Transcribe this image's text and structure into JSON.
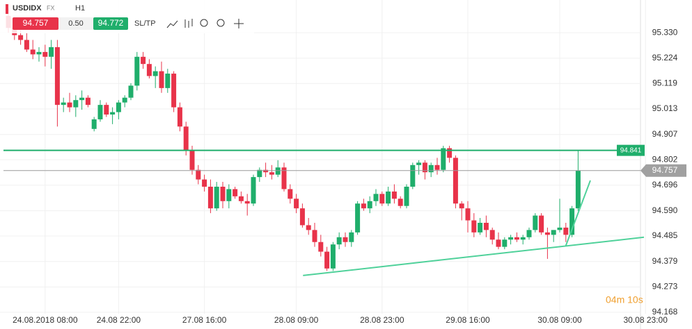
{
  "header": {
    "symbol": "USDIDX",
    "market": "FX",
    "timeframe": "H1",
    "sell": "94.757",
    "spread": "0.50",
    "buy": "94.772",
    "sltp": "SL/TP"
  },
  "timer": "04m 10s",
  "chart_data": {
    "type": "candlestick",
    "categories": [
      null,
      null,
      null,
      null,
      null,
      null,
      "24.08.2018 08:00",
      null,
      null,
      null,
      null,
      null,
      null,
      null,
      null,
      null,
      null,
      null,
      "24.08 22:00",
      null,
      null,
      null,
      null,
      null,
      null,
      null,
      null,
      null,
      null,
      null,
      null,
      null,
      "27.08 16:00",
      null,
      null,
      null,
      null,
      null,
      null,
      null,
      null,
      null,
      null,
      null,
      null,
      null,
      null,
      "28.08 09:00",
      null,
      null,
      null,
      null,
      null,
      null,
      null,
      null,
      null,
      null,
      null,
      null,
      null,
      "28.08 23:00",
      null,
      null,
      null,
      null,
      null,
      null,
      null,
      null,
      null,
      null,
      null,
      null,
      null,
      "29.08 16:00",
      null,
      null,
      null,
      null,
      null,
      null,
      null,
      null,
      null,
      null,
      null,
      null,
      null,
      null,
      "30.08 09:00",
      null,
      null,
      null,
      null,
      null,
      null,
      null,
      null,
      null,
      null,
      null,
      null,
      null,
      "30.08 23:00",
      null
    ],
    "open": [
      95.4,
      95.35,
      95.32,
      95.3,
      95.26,
      95.24,
      95.25,
      95.23,
      95.27,
      95.03,
      95.04,
      95.02,
      95.05,
      95.06,
      94.93,
      94.97,
      95.03,
      94.99,
      95.0,
      95.04,
      95.06,
      95.11,
      95.23,
      95.2,
      95.15,
      95.17,
      95.1,
      95.16,
      95.02,
      94.94,
      94.84,
      94.76,
      94.72,
      94.69,
      94.6,
      94.69,
      94.63,
      94.68,
      94.65,
      94.63,
      94.62,
      94.73,
      94.76,
      94.75,
      94.74,
      94.77,
      94.68,
      94.64,
      94.6,
      94.53,
      94.51,
      94.46,
      94.42,
      94.35,
      94.45,
      94.48,
      94.46,
      94.5,
      94.62,
      94.6,
      94.63,
      94.66,
      94.62,
      94.67,
      94.64,
      94.61,
      94.69,
      94.78,
      94.79,
      94.75,
      94.78,
      94.76,
      94.85,
      94.81,
      94.62,
      94.6,
      94.55,
      94.5,
      94.54,
      94.51,
      94.47,
      94.44,
      94.47,
      94.48,
      94.47,
      94.48,
      94.51,
      94.57,
      94.5,
      94.49,
      94.51,
      94.52,
      94.49,
      94.6,
      null,
      null,
      null,
      null,
      null,
      null,
      null,
      null,
      null,
      null,
      null,
      null
    ],
    "high": [
      95.43,
      95.37,
      95.34,
      95.33,
      95.3,
      95.27,
      95.28,
      95.3,
      95.3,
      95.06,
      95.08,
      95.07,
      95.09,
      95.07,
      94.98,
      95.05,
      95.04,
      95.02,
      95.05,
      95.07,
      95.12,
      95.25,
      95.25,
      95.22,
      95.19,
      95.21,
      95.18,
      95.17,
      95.04,
      94.96,
      94.86,
      94.78,
      94.74,
      94.72,
      94.71,
      94.71,
      94.7,
      94.69,
      94.67,
      94.66,
      94.74,
      94.77,
      94.79,
      94.78,
      94.8,
      94.79,
      94.7,
      94.66,
      94.62,
      94.56,
      94.54,
      94.49,
      94.44,
      94.46,
      94.5,
      94.5,
      94.51,
      94.63,
      94.64,
      94.65,
      94.68,
      94.67,
      94.69,
      94.7,
      94.65,
      94.7,
      94.79,
      94.8,
      94.8,
      94.79,
      94.81,
      94.86,
      94.86,
      94.82,
      94.63,
      94.63,
      94.58,
      94.56,
      94.57,
      94.52,
      94.5,
      94.48,
      94.49,
      94.5,
      94.49,
      94.52,
      94.58,
      94.58,
      94.52,
      94.51,
      94.64,
      94.54,
      94.61,
      94.841,
      null,
      null,
      null,
      null,
      null,
      null,
      null,
      null,
      null,
      null,
      null,
      null
    ],
    "low": [
      95.33,
      95.3,
      95.28,
      95.25,
      95.22,
      95.21,
      95.19,
      95.18,
      94.94,
      95.0,
      95.0,
      94.98,
      95.01,
      95.02,
      94.92,
      94.96,
      94.98,
      94.95,
      94.97,
      95.02,
      95.05,
      95.09,
      95.18,
      95.14,
      95.1,
      95.08,
      95.08,
      95.0,
      94.92,
      94.82,
      94.74,
      94.7,
      94.67,
      94.58,
      94.59,
      94.6,
      94.6,
      94.64,
      94.62,
      94.57,
      94.61,
      94.71,
      94.73,
      94.72,
      94.73,
      94.67,
      94.62,
      94.58,
      94.52,
      94.49,
      94.44,
      94.4,
      94.34,
      94.34,
      94.43,
      94.44,
      94.44,
      94.49,
      94.59,
      94.58,
      94.61,
      94.61,
      94.61,
      94.62,
      94.6,
      94.6,
      94.68,
      94.74,
      94.72,
      94.73,
      94.74,
      94.75,
      94.79,
      94.6,
      94.55,
      94.5,
      94.48,
      94.49,
      94.48,
      94.45,
      94.43,
      94.43,
      94.45,
      94.46,
      94.45,
      94.47,
      94.5,
      94.49,
      94.39,
      94.46,
      94.5,
      94.46,
      94.48,
      94.59,
      null,
      null,
      null,
      null,
      null,
      null,
      null,
      null,
      null,
      null,
      null,
      null
    ],
    "close": [
      95.35,
      95.32,
      95.3,
      95.26,
      95.24,
      95.25,
      95.23,
      95.27,
      95.03,
      95.04,
      95.02,
      95.05,
      95.06,
      95.03,
      94.97,
      95.03,
      94.99,
      95.0,
      95.04,
      95.06,
      95.11,
      95.23,
      95.2,
      95.15,
      95.17,
      95.1,
      95.16,
      95.02,
      94.94,
      94.84,
      94.76,
      94.72,
      94.69,
      94.6,
      94.69,
      94.63,
      94.68,
      94.65,
      94.63,
      94.62,
      94.73,
      94.76,
      94.75,
      94.74,
      94.77,
      94.68,
      94.64,
      94.6,
      94.53,
      94.51,
      94.46,
      94.42,
      94.35,
      94.45,
      94.48,
      94.46,
      94.5,
      94.62,
      94.6,
      94.63,
      94.66,
      94.62,
      94.67,
      94.64,
      94.61,
      94.69,
      94.78,
      94.79,
      94.75,
      94.78,
      94.76,
      94.85,
      94.81,
      94.62,
      94.6,
      94.55,
      94.5,
      94.54,
      94.51,
      94.47,
      94.44,
      94.47,
      94.48,
      94.47,
      94.48,
      94.51,
      94.57,
      94.5,
      94.49,
      94.51,
      94.52,
      94.49,
      94.6,
      94.757,
      null,
      null,
      null,
      null,
      null,
      null,
      null,
      null,
      null,
      null,
      null,
      null
    ],
    "up_color": "#1fae6b",
    "down_color": "#e8334a",
    "ylim": [
      94.162,
      95.466
    ],
    "yticks": [
      {
        "value": 95.33,
        "label": "95.330"
      },
      95.224,
      95.119,
      95.013,
      94.907,
      94.802,
      94.696,
      {
        "value": 94.59,
        "label": "94.590"
      },
      94.485,
      94.379,
      94.273,
      94.168
    ],
    "grid": true,
    "hlines": [
      {
        "value": 94.841,
        "color": "#1fae6b"
      },
      {
        "value": 94.757,
        "color": "#999999"
      }
    ],
    "trendlines": [
      {
        "x": [
          48.1,
          103.75
        ],
        "y": [
          94.321,
          94.48
        ],
        "color": "#4fd19a"
      },
      {
        "x": [
          91,
          95
        ],
        "y": [
          94.445,
          94.716
        ],
        "color": "#4fd19a"
      }
    ]
  }
}
